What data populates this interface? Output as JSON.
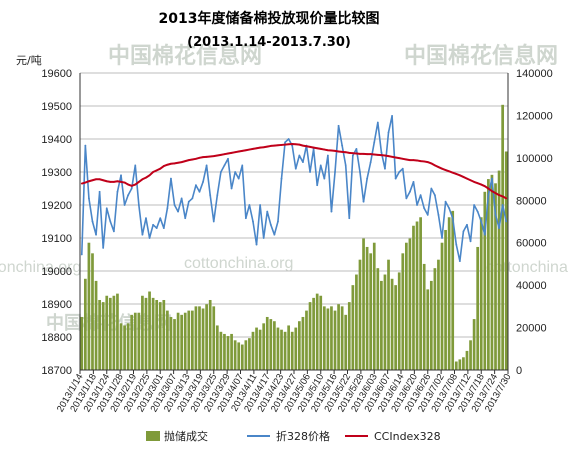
{
  "chart_data": {
    "type": "bar+line",
    "title": "2013年度储备棉投放现价量比较图",
    "subtitle": "(2013.1.14-2013.7.30)",
    "left_axis": {
      "unit": "元/吨",
      "ylim": [
        18700,
        19600
      ],
      "ticks": [
        18700,
        18800,
        18900,
        19000,
        19100,
        19200,
        19300,
        19400,
        19500,
        19600
      ]
    },
    "right_axis": {
      "ylim": [
        0,
        140000
      ],
      "ticks": [
        0,
        20000,
        40000,
        60000,
        80000,
        100000,
        120000,
        140000
      ]
    },
    "x_tick_labels": [
      "2013/1/14",
      "2013/1/18",
      "2013/1/24",
      "2013/1/28",
      "2013/2/19",
      "2013/2/25",
      "2013/3/01",
      "2013/3/07",
      "2013/3/13",
      "2013/3/19",
      "2013/3/25",
      "2013/3/29",
      "2013/4/07",
      "2013/4/11",
      "2013/4/17",
      "2013/4/23",
      "2013/4/27",
      "2013/5/06",
      "2013/5/10",
      "2013/5/16",
      "2013/5/22",
      "2013/5/28",
      "2013/6/03",
      "2013/6/07",
      "2013/6/14",
      "2013/6/20",
      "2013/6/26",
      "2013/7/02",
      "2013/7/08",
      "2013/7/12",
      "2013/7/18",
      "2013/7/24",
      "2013/7/30"
    ],
    "legend_position": "bottom",
    "series": [
      {
        "name": "抛储成交",
        "type": "bar",
        "axis": "right",
        "color": "#7f9a3a",
        "values": [
          25000,
          43000,
          60000,
          55000,
          42000,
          33000,
          32000,
          35000,
          34000,
          35000,
          36000,
          22000,
          21000,
          22000,
          26000,
          27000,
          27000,
          35000,
          34000,
          37000,
          34000,
          33000,
          32000,
          33000,
          28000,
          25000,
          24000,
          27000,
          26000,
          27000,
          28000,
          28000,
          30000,
          30000,
          29000,
          31000,
          33000,
          30000,
          21000,
          18000,
          17000,
          16000,
          17000,
          14000,
          13000,
          12000,
          14000,
          15000,
          18000,
          20000,
          19000,
          22000,
          25000,
          24000,
          23000,
          20000,
          19000,
          18000,
          21000,
          18000,
          20000,
          23000,
          25000,
          28000,
          32000,
          34000,
          36000,
          35000,
          30000,
          29000,
          30000,
          28000,
          31000,
          30000,
          26000,
          32000,
          40000,
          45000,
          52000,
          62000,
          58000,
          55000,
          60000,
          48000,
          42000,
          45000,
          52000,
          43000,
          40000,
          46000,
          55000,
          60000,
          62000,
          68000,
          70000,
          72000,
          50000,
          38000,
          42000,
          48000,
          52000,
          60000,
          66000,
          72000,
          75000,
          4000,
          5000,
          6000,
          9000,
          14000,
          24000,
          58000,
          72000,
          84000,
          90000,
          92000,
          88000,
          94000,
          125000,
          103000
        ]
      },
      {
        "name": "折328价格",
        "type": "line",
        "axis": "left",
        "color": "#4a86c8",
        "values": [
          19050,
          19380,
          19220,
          19150,
          19110,
          19240,
          19070,
          19190,
          19150,
          19120,
          19240,
          19290,
          19200,
          19230,
          19250,
          19320,
          19200,
          19110,
          19160,
          19100,
          19140,
          19130,
          19160,
          19130,
          19190,
          19280,
          19200,
          19180,
          19220,
          19160,
          19210,
          19220,
          19260,
          19240,
          19270,
          19320,
          19230,
          19150,
          19230,
          19300,
          19320,
          19340,
          19250,
          19300,
          19280,
          19320,
          19160,
          19200,
          19150,
          19080,
          19200,
          19100,
          19180,
          19140,
          19110,
          19150,
          19280,
          19390,
          19400,
          19380,
          19310,
          19350,
          19330,
          19380,
          19300,
          19370,
          19260,
          19320,
          19280,
          19350,
          19180,
          19300,
          19440,
          19380,
          19320,
          19160,
          19350,
          19370,
          19300,
          19210,
          19280,
          19330,
          19390,
          19450,
          19360,
          19310,
          19420,
          19470,
          19280,
          19300,
          19310,
          19220,
          19240,
          19270,
          19200,
          19230,
          19190,
          19170,
          19250,
          19230,
          19170,
          19100,
          19210,
          19190,
          19160,
          19080,
          19030,
          19120,
          19140,
          19090,
          19200,
          19180,
          19150,
          19110,
          19230,
          19280,
          19170,
          19130,
          19200,
          19150
        ]
      },
      {
        "name": "CCIndex328",
        "type": "line",
        "axis": "left",
        "color": "#c0001a",
        "values": [
          19265,
          19268,
          19272,
          19275,
          19278,
          19278,
          19275,
          19272,
          19270,
          19270,
          19272,
          19270,
          19268,
          19262,
          19258,
          19262,
          19270,
          19278,
          19283,
          19290,
          19300,
          19305,
          19310,
          19318,
          19322,
          19325,
          19326,
          19328,
          19330,
          19333,
          19336,
          19338,
          19340,
          19343,
          19345,
          19346,
          19347,
          19348,
          19350,
          19352,
          19354,
          19356,
          19358,
          19360,
          19362,
          19364,
          19366,
          19368,
          19370,
          19372,
          19374,
          19375,
          19377,
          19379,
          19380,
          19381,
          19382,
          19383,
          19384,
          19385,
          19384,
          19383,
          19380,
          19378,
          19376,
          19374,
          19372,
          19370,
          19368,
          19366,
          19365,
          19364,
          19362,
          19361,
          19360,
          19358,
          19357,
          19356,
          19355,
          19355,
          19354,
          19354,
          19353,
          19352,
          19351,
          19350,
          19348,
          19346,
          19344,
          19342,
          19340,
          19338,
          19336,
          19336,
          19335,
          19333,
          19332,
          19330,
          19326,
          19320,
          19315,
          19310,
          19306,
          19302,
          19298,
          19294,
          19290,
          19285,
          19280,
          19275,
          19270,
          19266,
          19262,
          19257,
          19250,
          19242,
          19236,
          19230,
          19226,
          19220
        ]
      }
    ]
  },
  "watermarks": {
    "cn": "中国棉花信息网",
    "en": "cottonchina.org"
  }
}
